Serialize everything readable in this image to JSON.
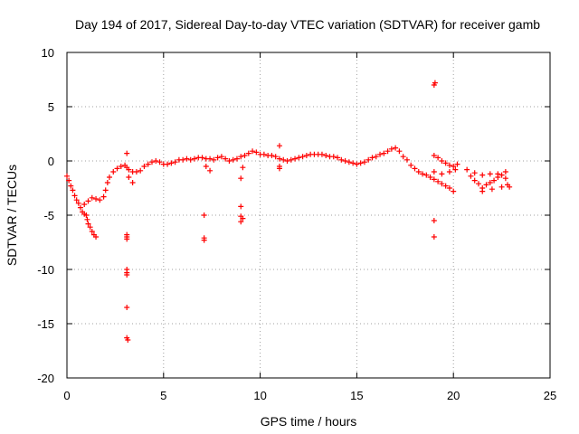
{
  "chart_data": {
    "type": "scatter",
    "title": "Day 194 of 2017, Sidereal Day-to-day VTEC variation (SDTVAR) for receiver gamb",
    "xlabel": "GPS time / hours",
    "ylabel": "SDTVAR / TECUs",
    "xlim": [
      0,
      25
    ],
    "ylim": [
      -20,
      10
    ],
    "x_ticks": [
      0,
      5,
      10,
      15,
      20,
      25
    ],
    "y_ticks": [
      -20,
      -15,
      -10,
      -5,
      0,
      5,
      10
    ],
    "x_tick_labels": [
      "0",
      "5",
      "10",
      "15",
      "20",
      "25"
    ],
    "y_tick_labels": [
      "-20",
      "-15",
      "-10",
      "-5",
      "0",
      "5",
      "10"
    ],
    "grid": true,
    "marker": "+",
    "marker_color": "#ff0000",
    "series": [
      {
        "name": "main-trace",
        "points": [
          [
            0.0,
            -1.4
          ],
          [
            0.1,
            -1.8
          ],
          [
            0.2,
            -2.3
          ],
          [
            0.3,
            -2.7
          ],
          [
            0.4,
            -3.2
          ],
          [
            0.5,
            -3.6
          ],
          [
            0.6,
            -3.9
          ],
          [
            0.7,
            -4.3
          ],
          [
            0.8,
            -4.7
          ],
          [
            0.9,
            -4.9
          ],
          [
            1.0,
            -5.0
          ],
          [
            1.05,
            -5.4
          ],
          [
            1.1,
            -5.8
          ],
          [
            1.2,
            -6.1
          ],
          [
            1.3,
            -6.5
          ],
          [
            1.4,
            -6.8
          ],
          [
            1.5,
            -7.0
          ],
          [
            0.9,
            -4.0
          ],
          [
            1.1,
            -3.7
          ],
          [
            1.3,
            -3.4
          ],
          [
            1.5,
            -3.5
          ],
          [
            1.7,
            -3.6
          ],
          [
            1.9,
            -3.3
          ],
          [
            2.0,
            -2.7
          ],
          [
            2.1,
            -2.0
          ],
          [
            2.2,
            -1.5
          ],
          [
            2.4,
            -1.0
          ],
          [
            2.6,
            -0.7
          ],
          [
            2.8,
            -0.5
          ],
          [
            3.0,
            -0.4
          ],
          [
            3.1,
            -0.6
          ],
          [
            3.2,
            -0.8
          ],
          [
            3.4,
            -1.0
          ],
          [
            3.6,
            -1.0
          ],
          [
            3.8,
            -0.9
          ],
          [
            4.0,
            -0.5
          ],
          [
            4.2,
            -0.3
          ],
          [
            4.4,
            -0.1
          ],
          [
            4.6,
            0.0
          ],
          [
            4.8,
            -0.1
          ],
          [
            5.0,
            -0.3
          ],
          [
            5.2,
            -0.3
          ],
          [
            5.4,
            -0.2
          ],
          [
            5.6,
            -0.1
          ],
          [
            5.8,
            0.1
          ],
          [
            6.0,
            0.1
          ],
          [
            6.2,
            0.2
          ],
          [
            6.4,
            0.1
          ],
          [
            6.6,
            0.2
          ],
          [
            6.8,
            0.3
          ],
          [
            7.0,
            0.3
          ],
          [
            7.2,
            0.2
          ],
          [
            7.4,
            0.2
          ],
          [
            7.6,
            0.1
          ],
          [
            7.8,
            0.3
          ],
          [
            8.0,
            0.4
          ],
          [
            8.2,
            0.2
          ],
          [
            8.4,
            0.0
          ],
          [
            8.6,
            0.1
          ],
          [
            8.8,
            0.2
          ],
          [
            9.0,
            0.4
          ],
          [
            9.2,
            0.5
          ],
          [
            9.4,
            0.7
          ],
          [
            9.6,
            0.9
          ],
          [
            9.8,
            0.8
          ],
          [
            10.0,
            0.6
          ],
          [
            10.2,
            0.6
          ],
          [
            10.4,
            0.5
          ],
          [
            10.6,
            0.5
          ],
          [
            10.8,
            0.4
          ],
          [
            11.0,
            0.2
          ],
          [
            11.2,
            0.1
          ],
          [
            11.4,
            0.0
          ],
          [
            11.6,
            0.1
          ],
          [
            11.8,
            0.2
          ],
          [
            12.0,
            0.3
          ],
          [
            12.2,
            0.4
          ],
          [
            12.4,
            0.5
          ],
          [
            12.6,
            0.6
          ],
          [
            12.8,
            0.6
          ],
          [
            13.0,
            0.6
          ],
          [
            13.2,
            0.6
          ],
          [
            13.4,
            0.5
          ],
          [
            13.6,
            0.4
          ],
          [
            13.8,
            0.4
          ],
          [
            14.0,
            0.3
          ],
          [
            14.2,
            0.1
          ],
          [
            14.4,
            0.0
          ],
          [
            14.6,
            -0.1
          ],
          [
            14.8,
            -0.2
          ],
          [
            15.0,
            -0.3
          ],
          [
            15.2,
            -0.2
          ],
          [
            15.4,
            -0.1
          ],
          [
            15.6,
            0.1
          ],
          [
            15.8,
            0.3
          ],
          [
            16.0,
            0.4
          ],
          [
            16.2,
            0.6
          ],
          [
            16.4,
            0.7
          ],
          [
            16.6,
            0.9
          ],
          [
            16.8,
            1.1
          ],
          [
            17.0,
            1.2
          ],
          [
            17.2,
            0.9
          ],
          [
            17.4,
            0.4
          ],
          [
            17.6,
            0.1
          ],
          [
            17.8,
            -0.4
          ],
          [
            18.0,
            -0.7
          ],
          [
            18.2,
            -1.0
          ],
          [
            18.4,
            -1.2
          ],
          [
            18.6,
            -1.3
          ],
          [
            18.8,
            -1.5
          ],
          [
            19.0,
            -1.7
          ],
          [
            19.2,
            -1.9
          ],
          [
            19.4,
            -2.1
          ],
          [
            19.6,
            -2.3
          ],
          [
            19.8,
            -2.5
          ],
          [
            20.0,
            -2.8
          ],
          [
            19.0,
            0.5
          ],
          [
            19.2,
            0.3
          ],
          [
            19.4,
            0.0
          ],
          [
            19.6,
            -0.2
          ],
          [
            19.8,
            -0.4
          ],
          [
            20.0,
            -0.5
          ],
          [
            20.2,
            -0.3
          ],
          [
            19.0,
            -1.0
          ],
          [
            19.4,
            -1.2
          ],
          [
            19.8,
            -1.0
          ],
          [
            20.1,
            -0.8
          ],
          [
            20.7,
            -0.8
          ],
          [
            20.9,
            -1.4
          ],
          [
            21.1,
            -1.8
          ],
          [
            21.3,
            -2.1
          ],
          [
            21.5,
            -2.5
          ],
          [
            21.7,
            -2.2
          ],
          [
            21.9,
            -2.0
          ],
          [
            22.1,
            -1.8
          ],
          [
            22.3,
            -1.5
          ],
          [
            22.5,
            -1.3
          ],
          [
            22.7,
            -1.6
          ],
          [
            22.8,
            -2.2
          ],
          [
            21.1,
            -1.1
          ],
          [
            21.5,
            -1.3
          ],
          [
            21.9,
            -1.2
          ],
          [
            22.3,
            -1.2
          ],
          [
            22.7,
            -1.0
          ],
          [
            21.5,
            -2.8
          ],
          [
            22.0,
            -2.6
          ],
          [
            22.5,
            -2.4
          ],
          [
            22.9,
            -2.4
          ],
          [
            3.2,
            -1.5
          ],
          [
            3.4,
            -2.0
          ],
          [
            7.2,
            -0.5
          ],
          [
            7.4,
            -0.9
          ],
          [
            9.1,
            -0.6
          ]
        ]
      },
      {
        "name": "outliers",
        "points": [
          [
            3.1,
            0.7
          ],
          [
            3.1,
            -6.8
          ],
          [
            3.1,
            -7.0
          ],
          [
            3.1,
            -7.2
          ],
          [
            3.1,
            -10.0
          ],
          [
            3.1,
            -10.3
          ],
          [
            3.1,
            -10.5
          ],
          [
            3.1,
            -13.5
          ],
          [
            3.1,
            -16.3
          ],
          [
            3.15,
            -16.5
          ],
          [
            7.1,
            -5.0
          ],
          [
            7.1,
            -7.1
          ],
          [
            7.1,
            -7.3
          ],
          [
            9.0,
            -1.6
          ],
          [
            9.0,
            -4.2
          ],
          [
            9.0,
            -5.1
          ],
          [
            9.0,
            -5.6
          ],
          [
            9.1,
            -5.3
          ],
          [
            19.0,
            7.0
          ],
          [
            19.05,
            7.2
          ],
          [
            19.0,
            -5.5
          ],
          [
            19.0,
            -7.0
          ],
          [
            11.0,
            1.4
          ],
          [
            11.0,
            -0.5
          ],
          [
            11.0,
            -0.7
          ]
        ]
      }
    ]
  }
}
